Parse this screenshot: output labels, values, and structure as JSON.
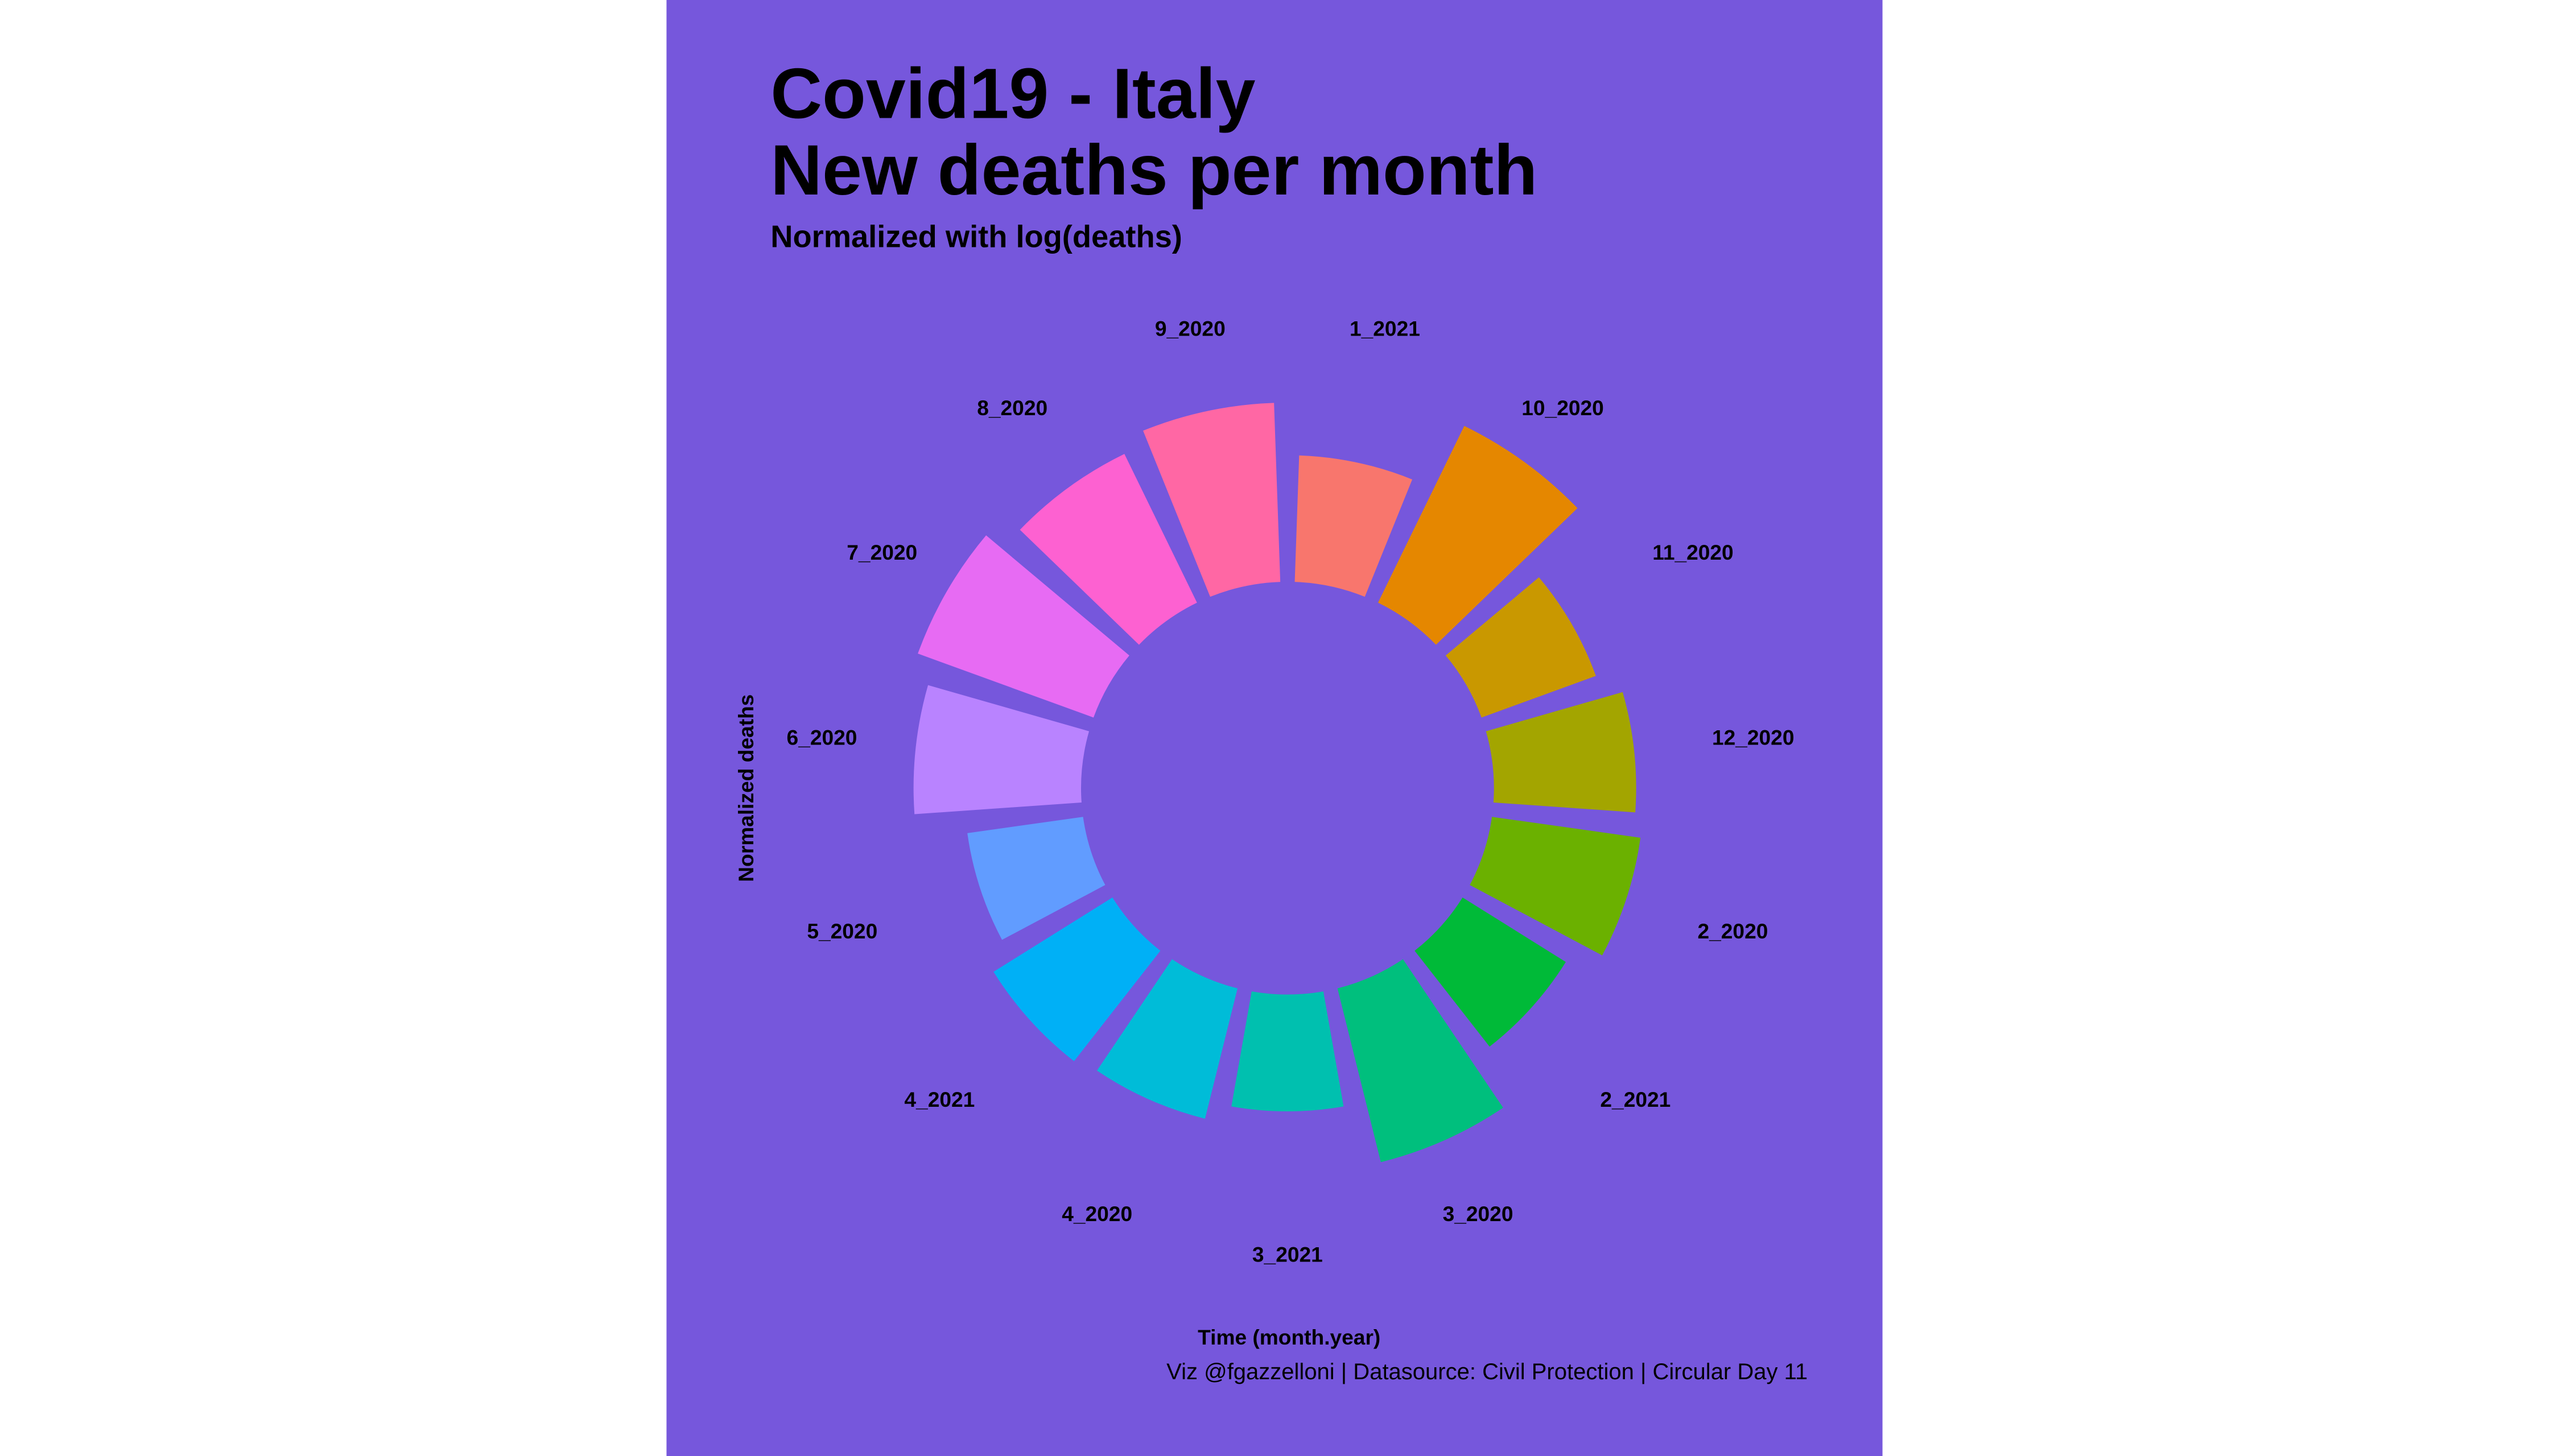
{
  "chart_data": {
    "type": "polar-bar",
    "title": [
      "Covid19 - Italy",
      "New deaths per month"
    ],
    "subtitle": "Normalized with log(deaths)",
    "y_label": "Normalized deaths",
    "x_label": "Time (month.year)",
    "caption": "Viz @fgazzelloni | Datasource: Civil Protection | Circular Day 11",
    "categories": [
      "1_2021",
      "10_2020",
      "11_2020",
      "12_2020",
      "2_2020",
      "2_2021",
      "3_2020",
      "3_2021",
      "4_2020",
      "4_2021",
      "5_2020",
      "6_2020",
      "7_2020",
      "8_2020",
      "9_2020"
    ],
    "values": [
      6.5,
      10.1,
      6.25,
      7.3,
      7.7,
      6.25,
      9.2,
      6.0,
      6.9,
      7.2,
      6.0,
      8.6,
      9.6,
      8.5,
      9.2
    ],
    "colors": [
      "#F8766D",
      "#E58700",
      "#C99800",
      "#A3A500",
      "#6BB100",
      "#00BA38",
      "#00BF7D",
      "#00C0AF",
      "#00BCD8",
      "#00B0F6",
      "#619CFF",
      "#B983FF",
      "#E76BF3",
      "#FD61D1",
      "#FF67A4"
    ],
    "background": "#7657DC"
  }
}
